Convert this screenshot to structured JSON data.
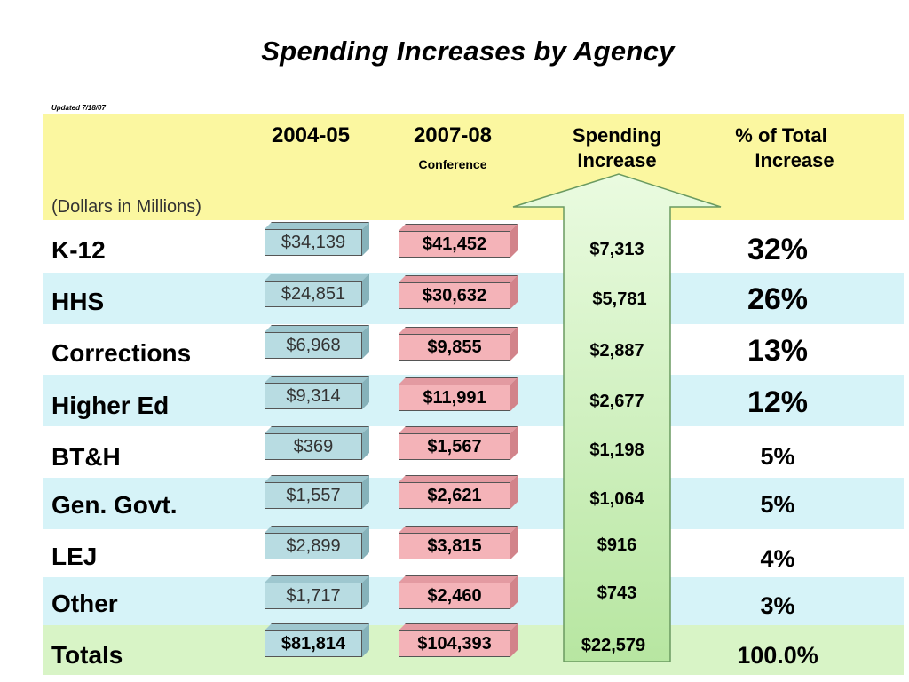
{
  "chart_data": {
    "type": "table",
    "title": "Spending Increases by Agency",
    "updated_note": "Updated 7/18/07",
    "units_note": "(Dollars in Millions)",
    "columns": {
      "col1": "2004-05",
      "col2": "2007-08",
      "col2_sub": "Conference",
      "col3_line1": "Spending",
      "col3_line2": "Increase",
      "col4_line1": "% of Total",
      "col4_line2": "Increase"
    },
    "rows": [
      {
        "label": "K-12",
        "v2004": "$34,139",
        "v2007": "$41,452",
        "increase": "$7,313",
        "pct": "32%"
      },
      {
        "label": "HHS",
        "v2004": "$24,851",
        "v2007": "$30,632",
        "increase": "$5,781",
        "pct": "26%"
      },
      {
        "label": "Corrections",
        "v2004": "$6,968",
        "v2007": "$9,855",
        "increase": "$2,887",
        "pct": "13%"
      },
      {
        "label": "Higher Ed",
        "v2004": "$9,314",
        "v2007": "$11,991",
        "increase": "$2,677",
        "pct": "12%"
      },
      {
        "label": "BT&H",
        "v2004": "$369",
        "v2007": "$1,567",
        "increase": "$1,198",
        "pct": "5%"
      },
      {
        "label": "Gen. Govt.",
        "v2004": "$1,557",
        "v2007": "$2,621",
        "increase": "$1,064",
        "pct": "5%"
      },
      {
        "label": "LEJ",
        "v2004": "$2,899",
        "v2007": "$3,815",
        "increase": "$916",
        "pct": "4%"
      },
      {
        "label": "Other",
        "v2004": "$1,717",
        "v2007": "$2,460",
        "increase": "$743",
        "pct": "3%"
      },
      {
        "label": "Totals",
        "v2004": "$81,814",
        "v2007": "$104,393",
        "increase": "$22,579",
        "pct": "100.0%"
      }
    ],
    "colors": {
      "header_band": "#fbf7a0",
      "row_band_blue": "#d6f3f8",
      "totals_band": "#d8f4c6",
      "box_2004": "#b8dce2",
      "box_2007": "#f4b3b8",
      "arrow": "#d6f5c4"
    }
  }
}
